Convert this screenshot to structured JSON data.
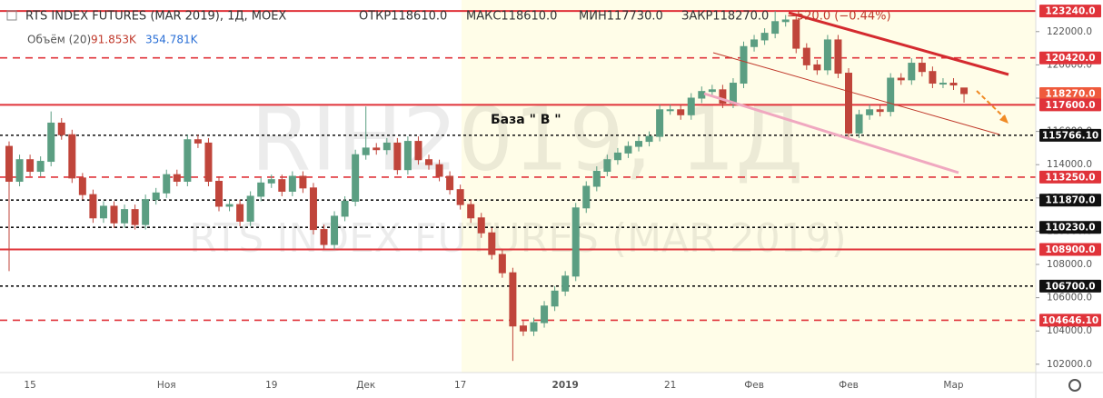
{
  "header": {
    "symbol": "RTS INDEX FUTURES (MAR 2019), 1Д, MOEX",
    "open": "ОТКР118610.0",
    "high": "МАКС118610.0",
    "low": "МИН117730.0",
    "close": "ЗАКР118270.0",
    "change": "−520.0 (−0.44%)",
    "volume_label": "Объём (20)",
    "volume_value": "91.853K",
    "volume_ma": "354.781K"
  },
  "chart_data": {
    "type": "candlestick",
    "watermark": [
      "RIH2019, 1Д",
      "RTS INDEX FUTURES (MAR 2019)"
    ],
    "annotation": "База \" В \"",
    "up_color": "#5b9e82",
    "down_color": "#c0453b",
    "categories": [
      null,
      null,
      "15",
      null,
      null,
      null,
      null,
      null,
      null,
      null,
      null,
      null,
      null,
      null,
      null,
      "Ноя",
      null,
      null,
      null,
      null,
      null,
      null,
      null,
      null,
      null,
      "19",
      null,
      null,
      null,
      null,
      null,
      null,
      null,
      null,
      "Дек",
      null,
      null,
      null,
      null,
      null,
      null,
      null,
      null,
      "17",
      null,
      null,
      null,
      null,
      null,
      null,
      null,
      null,
      null,
      "2019",
      null,
      null,
      null,
      null,
      null,
      null,
      null,
      null,
      null,
      "21",
      null,
      null,
      null,
      null,
      null,
      null,
      null,
      "Фев",
      null,
      null,
      null,
      null,
      null,
      null,
      null,
      null,
      "Фев",
      null,
      null,
      null,
      null,
      null,
      null,
      null,
      null,
      null,
      "Мар",
      null
    ],
    "open": [
      115100,
      113000,
      114300,
      113600,
      114200,
      116500,
      115800,
      113200,
      112200,
      110800,
      111500,
      110500,
      111300,
      110400,
      111900,
      112300,
      113400,
      113000,
      115500,
      115300,
      113000,
      111500,
      111600,
      110600,
      112100,
      112900,
      113100,
      112400,
      113300,
      112600,
      110100,
      109200,
      110900,
      111800,
      114600,
      115000,
      114900,
      115300,
      113700,
      115400,
      114300,
      114000,
      113300,
      112500,
      111600,
      110800,
      109900,
      108600,
      107500,
      104300,
      104000,
      104500,
      105500,
      106400,
      107300,
      111400,
      112700,
      113600,
      114300,
      114700,
      115100,
      115400,
      115700,
      117300,
      117300,
      117000,
      118000,
      118400,
      118500,
      117700,
      118900,
      121100,
      121500,
      121900,
      122600,
      122700,
      121000,
      120000,
      119700,
      121500,
      119500,
      115900,
      117000,
      117300,
      117200,
      119200,
      119100,
      120100,
      119600,
      118900,
      118900,
      118610
    ],
    "high": [
      115400,
      114600,
      114600,
      114500,
      117200,
      116800,
      116100,
      113500,
      112500,
      111800,
      111800,
      111600,
      111600,
      112200,
      112600,
      113700,
      113700,
      115800,
      115800,
      115600,
      113300,
      111900,
      111900,
      112400,
      113200,
      113400,
      113400,
      113600,
      113600,
      112900,
      110400,
      111200,
      112100,
      114900,
      117500,
      115300,
      115600,
      115600,
      115700,
      115700,
      114600,
      114300,
      113600,
      112800,
      111900,
      111100,
      110200,
      108900,
      107800,
      104600,
      104800,
      105800,
      106700,
      107600,
      111700,
      113000,
      113900,
      114600,
      115000,
      115400,
      115700,
      116000,
      117600,
      117600,
      117600,
      118300,
      118700,
      118800,
      118800,
      119200,
      121400,
      121800,
      122200,
      123240,
      123000,
      123000,
      121300,
      120300,
      121800,
      121800,
      119800,
      117300,
      117600,
      117600,
      119500,
      119500,
      120400,
      120400,
      119900,
      119200,
      119200,
      118610
    ],
    "low": [
      107600,
      112700,
      113300,
      113300,
      113900,
      115500,
      112900,
      111900,
      110500,
      110500,
      110200,
      110200,
      110100,
      110100,
      111600,
      112000,
      112700,
      112700,
      115000,
      112700,
      111200,
      111200,
      110300,
      110300,
      111800,
      112600,
      112100,
      112100,
      112300,
      109800,
      108900,
      108900,
      110600,
      111500,
      114300,
      114600,
      114600,
      113400,
      113400,
      114000,
      113700,
      113000,
      112200,
      111300,
      110500,
      109600,
      108300,
      107200,
      102200,
      103700,
      103700,
      104200,
      105200,
      106100,
      107000,
      111100,
      112400,
      113300,
      114000,
      114400,
      114800,
      115100,
      115400,
      117000,
      116700,
      116700,
      117700,
      118100,
      117400,
      117400,
      118600,
      120800,
      121200,
      121600,
      122300,
      120700,
      119700,
      119400,
      119400,
      119200,
      115600,
      115600,
      116700,
      116900,
      116900,
      118800,
      118800,
      119300,
      118600,
      118600,
      118490,
      117730
    ],
    "close": [
      113000,
      114300,
      113600,
      114200,
      116500,
      115800,
      113200,
      112200,
      110800,
      111500,
      110500,
      111300,
      110400,
      111900,
      112300,
      113400,
      113000,
      115500,
      115300,
      113000,
      111500,
      111600,
      110600,
      112100,
      112900,
      113100,
      112400,
      113300,
      112600,
      110100,
      109200,
      110900,
      111800,
      114600,
      115000,
      114900,
      115300,
      113700,
      115400,
      114300,
      114000,
      113300,
      112500,
      111600,
      110800,
      109900,
      108600,
      107500,
      104300,
      104000,
      104500,
      105500,
      106400,
      107300,
      111400,
      112700,
      113600,
      114300,
      114700,
      115100,
      115400,
      115700,
      117300,
      117300,
      117000,
      118000,
      118400,
      118500,
      117700,
      118900,
      121100,
      121500,
      121900,
      122600,
      122700,
      121000,
      120000,
      119700,
      121500,
      119500,
      115900,
      117000,
      117300,
      117200,
      119200,
      119100,
      120100,
      119600,
      118900,
      118900,
      118790,
      118270
    ],
    "ylim": [
      101500,
      123900
    ],
    "yticks": [
      {
        "value": 102000,
        "label": "102000.0"
      },
      {
        "value": 104000,
        "label": "104000.0"
      },
      {
        "value": 106000,
        "label": "106000.0"
      },
      {
        "value": 108000,
        "label": "108000.0"
      },
      {
        "value": 110000,
        "label": "110000.0"
      },
      {
        "value": 112000,
        "label": "112000.0"
      },
      {
        "value": 114000,
        "label": "114000.0"
      },
      {
        "value": 116000,
        "label": "116000.0"
      },
      {
        "value": 118000,
        "label": "118000.0"
      },
      {
        "value": 120000,
        "label": "120000.0"
      },
      {
        "value": 122000,
        "label": "122000.0"
      }
    ],
    "levels": [
      {
        "value": 123240,
        "label": "123240.0",
        "color": "#e0333a",
        "style": "solid"
      },
      {
        "value": 120420,
        "label": "120420.0",
        "color": "#e0333a",
        "style": "dashed"
      },
      {
        "value": 118270,
        "label": "118270.0",
        "color": "#ef5a3c",
        "style": "none"
      },
      {
        "value": 117600,
        "label": "117600.0",
        "color": "#e0333a",
        "style": "solid"
      },
      {
        "value": 115766.1,
        "label": "115766.10",
        "color": "#111111",
        "style": "dotted"
      },
      {
        "value": 113250,
        "label": "113250.0",
        "color": "#e0333a",
        "style": "dashed"
      },
      {
        "value": 111870,
        "label": "111870.0",
        "color": "#111111",
        "style": "dotted"
      },
      {
        "value": 110230,
        "label": "110230.0",
        "color": "#111111",
        "style": "dotted"
      },
      {
        "value": 108900,
        "label": "108900.0",
        "color": "#e0333a",
        "style": "solid"
      },
      {
        "value": 106700,
        "label": "106700.0",
        "color": "#111111",
        "style": "dotted"
      },
      {
        "value": 104646.1,
        "label": "104646.10",
        "color": "#e0333a",
        "style": "dashed"
      }
    ]
  }
}
